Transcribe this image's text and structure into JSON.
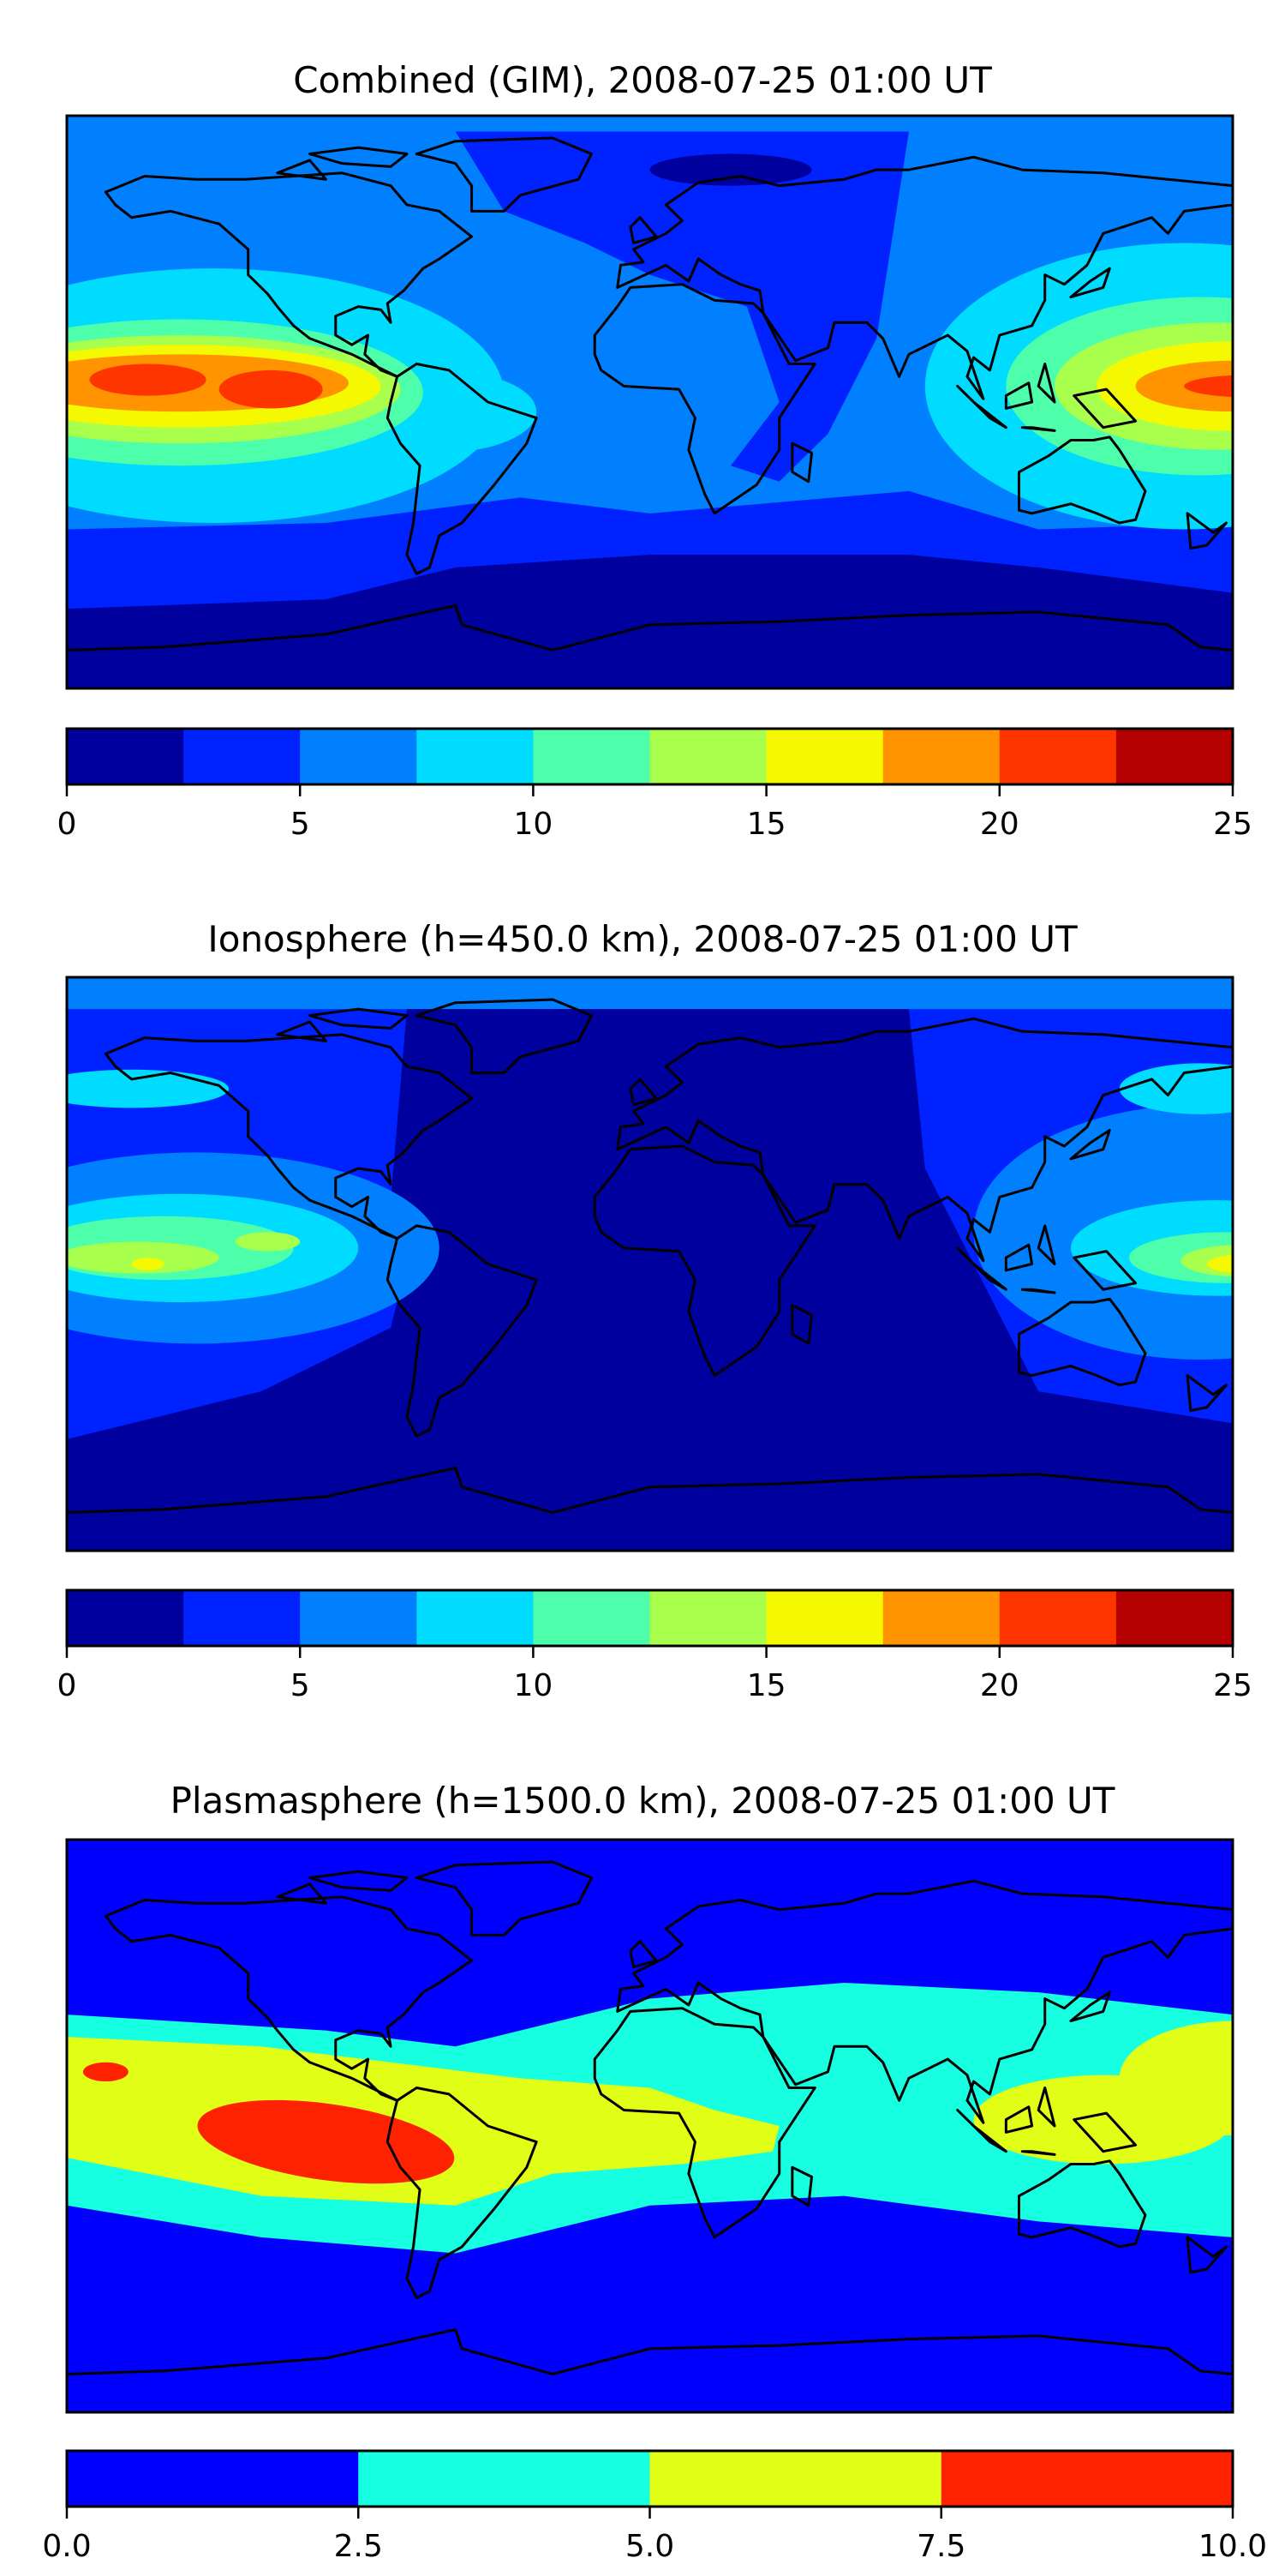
{
  "chart_data": [
    {
      "type": "heatmap",
      "title": "Combined (GIM), 2008-07-25 01:00 UT",
      "levels": [
        0,
        2.5,
        5,
        7.5,
        10,
        12.5,
        15,
        17.5,
        20,
        22.5,
        25
      ],
      "colors": [
        "#00009f",
        "#0022ff",
        "#0080ff",
        "#00dcff",
        "#4dffaa",
        "#a8ff4c",
        "#f4f800",
        "#ff9300",
        "#ff3500",
        "#b40000"
      ],
      "ticks": [
        0,
        5,
        10,
        15,
        20,
        25
      ],
      "tick_labels": [
        "0",
        "5",
        "10",
        "15",
        "20",
        "25"
      ],
      "range": [
        0,
        25
      ],
      "projection": "global lon/lat map with coastlines",
      "colorbar_position": "bottom"
    },
    {
      "type": "heatmap",
      "title": "Ionosphere  (h=450.0 km), 2008-07-25 01:00 UT",
      "levels": [
        0,
        2.5,
        5,
        7.5,
        10,
        12.5,
        15,
        17.5,
        20,
        22.5,
        25
      ],
      "colors": [
        "#00009f",
        "#0022ff",
        "#0080ff",
        "#00dcff",
        "#4dffaa",
        "#a8ff4c",
        "#f4f800",
        "#ff9300",
        "#ff3500",
        "#b40000"
      ],
      "ticks": [
        0,
        5,
        10,
        15,
        20,
        25
      ],
      "tick_labels": [
        "0",
        "5",
        "10",
        "15",
        "20",
        "25"
      ],
      "range": [
        0,
        25
      ],
      "projection": "global lon/lat map with coastlines",
      "colorbar_position": "bottom"
    },
    {
      "type": "heatmap",
      "title": "Plasmasphere (h=1500.0 km), 2008-07-25 01:00 UT",
      "levels": [
        0,
        2.5,
        5,
        7.5,
        10
      ],
      "colors": [
        "#0000ff",
        "#16ffe1",
        "#e1ff16",
        "#ff2200"
      ],
      "ticks": [
        0,
        2.5,
        5,
        7.5,
        10
      ],
      "tick_labels": [
        "0.0",
        "2.5",
        "5.0",
        "7.5",
        "10.0"
      ],
      "range": [
        0,
        10
      ],
      "projection": "global lon/lat map with coastlines",
      "colorbar_position": "bottom"
    }
  ]
}
